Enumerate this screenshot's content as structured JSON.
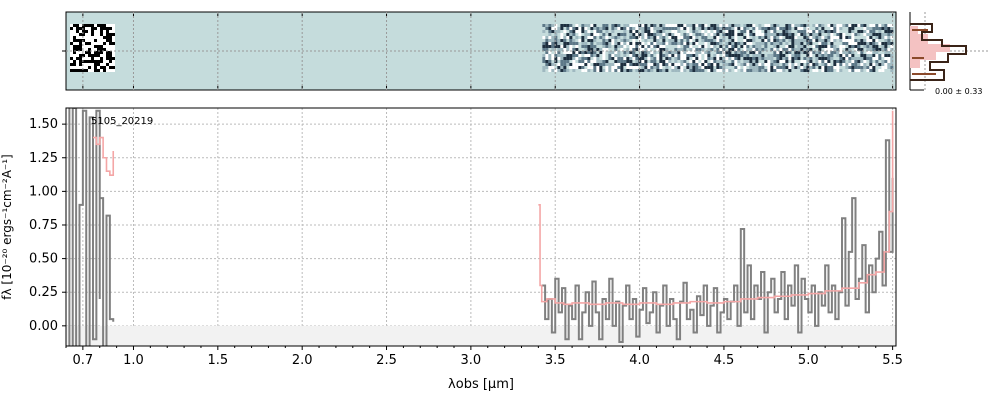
{
  "chart_data": [
    {
      "type": "heatmap",
      "description_panel": "2D spectrum",
      "x_tick_positions_um": [
        0.7,
        1.0,
        1.5,
        2.0,
        2.5,
        3.0,
        3.5,
        4.0,
        4.5,
        5.0,
        5.5
      ],
      "has_ytick": true,
      "colors": {
        "background": "#c5dcdc",
        "dark": "#1e2f3f"
      }
    },
    {
      "type": "line",
      "title": "",
      "source_label": "5105_20219",
      "xlabel": "λobs [μm]",
      "ylabel": "fλ [10⁻²⁰ ergs⁻¹cm⁻²A⁻¹]",
      "x_tick_labels": [
        "0.7",
        "1.0",
        "1.5",
        "2.0",
        "2.5",
        "3.0",
        "3.5",
        "4.0",
        "4.5",
        "5.0",
        "5.5"
      ],
      "x_ticks": [
        0.7,
        1.0,
        1.5,
        2.0,
        2.5,
        3.0,
        3.5,
        4.0,
        4.5,
        5.0,
        5.5
      ],
      "y_tick_labels": [
        "0.00",
        "0.25",
        "0.50",
        "0.75",
        "1.00",
        "1.25",
        "1.50"
      ],
      "y_ticks": [
        0.0,
        0.25,
        0.5,
        0.75,
        1.0,
        1.25,
        1.5
      ],
      "xlim": [
        0.6,
        5.52
      ],
      "ylim": [
        -0.15,
        1.62
      ],
      "grid": true,
      "series": [
        {
          "color": "#808080",
          "role": "flux",
          "segments": [
            {
              "x": [
                0.6,
                0.62,
                0.64,
                0.66,
                0.68,
                0.7,
                0.72,
                0.74,
                0.76,
                0.78,
                0.8
              ],
              "y": [
                1.7,
                -0.3,
                1.62,
                -0.3,
                0.9,
                1.6,
                -0.3,
                1.55,
                -0.1,
                1.6,
                0.2
              ]
            },
            {
              "x": [
                0.8,
                0.82,
                0.84,
                0.86,
                0.88
              ],
              "y": [
                0.95,
                -0.2,
                0.82,
                0.05,
                0.03
              ]
            },
            {
              "x": [
                3.42,
                3.44,
                3.46,
                3.48,
                3.5,
                3.52,
                3.54,
                3.56,
                3.58,
                3.6,
                3.62,
                3.64,
                3.66,
                3.68,
                3.7,
                3.72,
                3.74,
                3.76,
                3.78,
                3.8,
                3.82,
                3.84,
                3.86,
                3.88,
                3.9,
                3.92,
                3.94,
                3.96,
                3.98,
                4.0,
                4.02,
                4.04,
                4.06,
                4.08,
                4.1,
                4.12,
                4.14,
                4.16,
                4.18,
                4.2,
                4.22,
                4.24,
                4.26,
                4.28,
                4.3,
                4.32,
                4.34,
                4.36,
                4.38,
                4.4,
                4.42,
                4.44,
                4.46,
                4.48,
                4.5,
                4.52,
                4.54,
                4.56,
                4.58,
                4.6,
                4.62,
                4.64,
                4.66,
                4.68,
                4.7,
                4.72,
                4.74,
                4.76,
                4.78,
                4.8,
                4.82,
                4.84,
                4.86,
                4.88,
                4.9,
                4.92,
                4.94,
                4.96,
                4.98,
                5.0,
                5.02,
                5.04,
                5.06,
                5.08,
                5.1,
                5.12,
                5.14,
                5.16,
                5.18,
                5.2,
                5.22,
                5.24,
                5.26,
                5.28,
                5.3,
                5.32,
                5.34,
                5.36,
                5.38,
                5.4,
                5.42,
                5.44,
                5.46,
                5.48,
                5.5
              ],
              "y": [
                0.3,
                0.05,
                0.2,
                -0.05,
                0.35,
                0.1,
                0.28,
                -0.1,
                0.15,
                0.05,
                0.3,
                -0.1,
                0.1,
                0.25,
                0.0,
                0.33,
                0.1,
                -0.1,
                0.2,
                0.05,
                0.35,
                0.0,
                0.18,
                -0.12,
                0.15,
                0.3,
                0.05,
                0.2,
                -0.08,
                0.12,
                0.28,
                0.02,
                0.1,
                0.25,
                -0.05,
                0.15,
                0.3,
                0.0,
                0.2,
                0.05,
                -0.1,
                0.18,
                0.32,
                0.05,
                0.12,
                -0.05,
                0.22,
                0.08,
                0.3,
                0.0,
                0.15,
                0.28,
                -0.05,
                0.1,
                0.2,
                0.05,
                0.18,
                0.3,
                0.0,
                0.72,
                0.1,
                0.45,
                0.05,
                0.3,
                0.2,
                0.4,
                -0.05,
                0.25,
                0.35,
                0.1,
                0.2,
                0.4,
                0.05,
                0.3,
                0.15,
                0.45,
                -0.05,
                0.35,
                0.2,
                0.1,
                0.3,
                0.0,
                0.25,
                0.15,
                0.45,
                0.1,
                0.3,
                0.05,
                0.25,
                0.8,
                0.15,
                0.55,
                0.95,
                0.2,
                0.35,
                0.6,
                0.1,
                0.45,
                0.25,
                0.5,
                0.7,
                0.3,
                1.38,
                0.55,
                1.1
              ]
            }
          ]
        },
        {
          "color": "#f4a6a6",
          "role": "model",
          "segments": [
            {
              "x": [
                0.76,
                0.78,
                0.8,
                0.82,
                0.84,
                0.86,
                0.88
              ],
              "y": [
                1.4,
                1.35,
                1.4,
                1.25,
                1.15,
                1.12,
                1.3
              ]
            },
            {
              "x": [
                3.4,
                3.41,
                3.42,
                3.45,
                3.5,
                3.55,
                3.6,
                3.7,
                3.8,
                3.9,
                4.0,
                4.1,
                4.2,
                4.3,
                4.4,
                4.5,
                4.6,
                4.7,
                4.8,
                4.9,
                5.0,
                5.1,
                5.2,
                5.3,
                5.35,
                5.4,
                5.45,
                5.48,
                5.5
              ],
              "y": [
                0.9,
                0.3,
                0.18,
                0.2,
                0.17,
                0.16,
                0.17,
                0.16,
                0.17,
                0.16,
                0.17,
                0.16,
                0.17,
                0.18,
                0.17,
                0.18,
                0.2,
                0.21,
                0.22,
                0.23,
                0.24,
                0.26,
                0.28,
                0.32,
                0.38,
                0.4,
                0.55,
                0.85,
                1.6
              ]
            }
          ]
        }
      ]
    },
    {
      "type": "histogram",
      "annotation": "0.00 ± 0.33",
      "colors": {
        "fill": "#f4c2c2",
        "outline": "#5a2f1f"
      }
    }
  ]
}
